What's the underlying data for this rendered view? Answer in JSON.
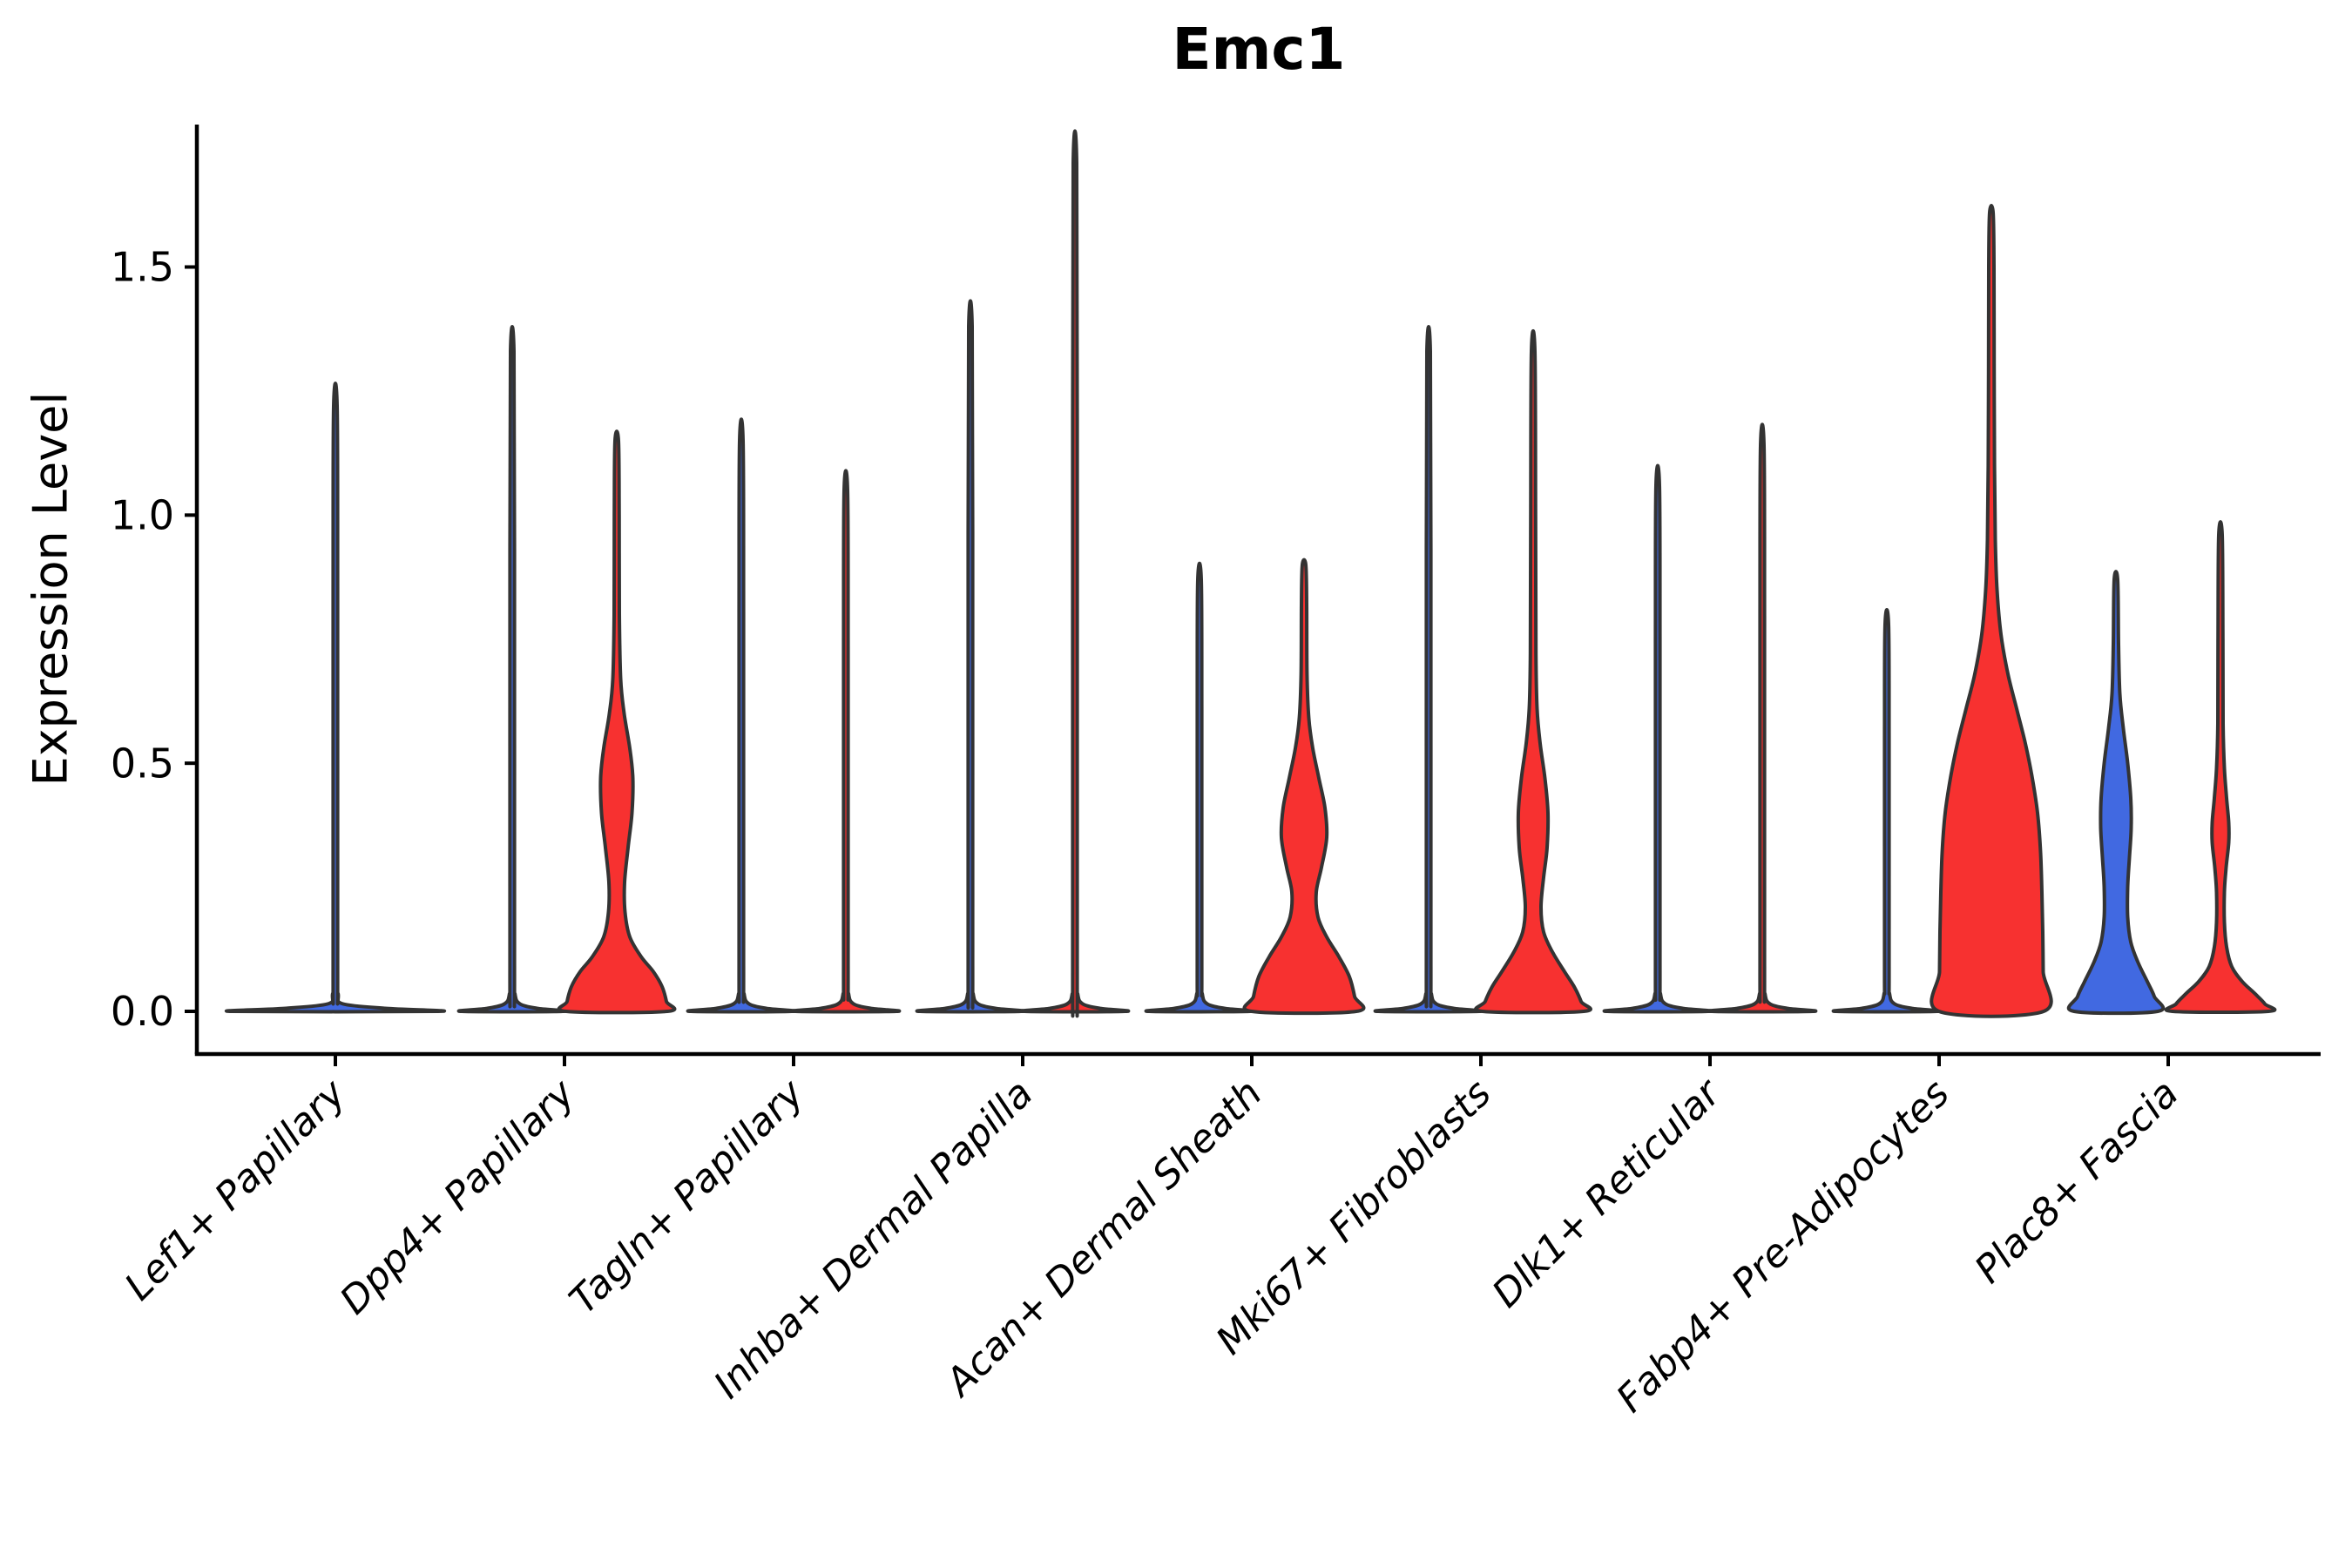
{
  "title": "Emc1",
  "ylabel": "Expression Level",
  "colors": {
    "red": "#f73130",
    "blue": "#4169e1",
    "outline": "#333333",
    "axis": "#000000",
    "text": "#000000"
  },
  "chart_data": {
    "type": "violin",
    "title": "Emc1",
    "xlabel": "",
    "ylabel": "Expression Level",
    "ylim": [
      -0.086,
      1.787
    ],
    "yticks": [
      0,
      0.5,
      1.0,
      1.5
    ],
    "ytick_labels": [
      "0.0",
      "0.5",
      "1.0",
      "1.5"
    ],
    "grid": false,
    "legend": "none",
    "categories": [
      "Lef1+ Papillary",
      "Dpp4+ Papillary",
      "Tagln+ Papillary",
      "Inhba+ Dermal Papilla",
      "Acan+ Dermal Sheath",
      "Mki67+ Fibroblasts",
      "Dlk1+ Reticular",
      "Fabp4+ Pre-Adipocytes",
      "Plac8+ Fascia"
    ],
    "note": "Split violin plot; each category has a left (blue) and right (red) group violin; most collapse to a flat base at 0 with a thin density spike. Lef1+ Papillary has a single centered full-width violin. profile = [expression_value, half_width_px] pairs.",
    "violins": [
      {
        "category_index": 0,
        "category": "Lef1+ Papillary",
        "side": "center",
        "fill": "blue",
        "max": 1.22,
        "shape": "spike",
        "base": 118
      },
      {
        "category_index": 1,
        "category": "Dpp4+ Papillary",
        "side": "left",
        "fill": "blue",
        "max": 1.33,
        "shape": "spike",
        "base": 58
      },
      {
        "category_index": 1,
        "category": "Dpp4+ Papillary",
        "side": "right",
        "fill": "red",
        "max": 1.15,
        "shape": "bulged",
        "profile": [
          [
            0,
            58
          ],
          [
            0.02,
            57
          ],
          [
            0.05,
            52
          ],
          [
            0.08,
            42
          ],
          [
            0.11,
            28
          ],
          [
            0.15,
            15
          ],
          [
            0.2,
            9.5
          ],
          [
            0.26,
            9
          ],
          [
            0.33,
            13
          ],
          [
            0.4,
            17.5
          ],
          [
            0.47,
            18.5
          ],
          [
            0.53,
            15
          ],
          [
            0.6,
            8.5
          ],
          [
            0.67,
            4.5
          ],
          [
            0.8,
            3
          ],
          [
            1.0,
            2.8
          ],
          [
            1.15,
            2
          ]
        ]
      },
      {
        "category_index": 2,
        "category": "Tagln+ Papillary",
        "side": "left",
        "fill": "blue",
        "max": 1.15,
        "shape": "spike",
        "base": 58
      },
      {
        "category_index": 2,
        "category": "Tagln+ Papillary",
        "side": "right",
        "fill": "red",
        "max": 1.05,
        "shape": "spike",
        "base": 58
      },
      {
        "category_index": 3,
        "category": "Inhba+ Dermal Papilla",
        "side": "left",
        "fill": "blue",
        "max": 1.38,
        "shape": "spike",
        "base": 58
      },
      {
        "category_index": 3,
        "category": "Inhba+ Dermal Papilla",
        "side": "right",
        "fill": "red",
        "max": 1.71,
        "shape": "spike",
        "base": 58
      },
      {
        "category_index": 4,
        "category": "Acan+ Dermal Sheath",
        "side": "left",
        "fill": "blue",
        "max": 0.87,
        "shape": "spike",
        "base": 58
      },
      {
        "category_index": 4,
        "category": "Acan+ Dermal Sheath",
        "side": "right",
        "fill": "red",
        "max": 0.9,
        "shape": "bulged",
        "profile": [
          [
            0,
            60
          ],
          [
            0.03,
            58
          ],
          [
            0.07,
            52
          ],
          [
            0.11,
            40
          ],
          [
            0.15,
            26
          ],
          [
            0.19,
            16
          ],
          [
            0.24,
            14
          ],
          [
            0.29,
            20
          ],
          [
            0.35,
            26
          ],
          [
            0.41,
            24
          ],
          [
            0.47,
            17
          ],
          [
            0.53,
            10
          ],
          [
            0.59,
            5.5
          ],
          [
            0.68,
            3.4
          ],
          [
            0.82,
            3
          ],
          [
            0.9,
            2
          ]
        ]
      },
      {
        "category_index": 5,
        "category": "Mki67+ Fibroblasts",
        "side": "left",
        "fill": "blue",
        "max": 1.33,
        "shape": "spike",
        "base": 58
      },
      {
        "category_index": 5,
        "category": "Mki67+ Fibroblasts",
        "side": "right",
        "fill": "red",
        "max": 1.33,
        "shape": "bulged",
        "profile": [
          [
            0,
            58
          ],
          [
            0.02,
            55
          ],
          [
            0.05,
            47
          ],
          [
            0.08,
            36
          ],
          [
            0.12,
            22
          ],
          [
            0.16,
            12
          ],
          [
            0.21,
            9
          ],
          [
            0.27,
            12
          ],
          [
            0.33,
            16
          ],
          [
            0.4,
            17
          ],
          [
            0.47,
            13.5
          ],
          [
            0.54,
            8
          ],
          [
            0.61,
            4.5
          ],
          [
            0.72,
            3.2
          ],
          [
            1.0,
            2.8
          ],
          [
            1.33,
            2
          ]
        ]
      },
      {
        "category_index": 6,
        "category": "Dlk1+ Reticular",
        "side": "left",
        "fill": "blue",
        "max": 1.06,
        "shape": "spike",
        "base": 58
      },
      {
        "category_index": 6,
        "category": "Dlk1+ Reticular",
        "side": "right",
        "fill": "red",
        "max": 1.14,
        "shape": "spike",
        "base": 58
      },
      {
        "category_index": 7,
        "category": "Fabp4+ Pre-Adipocytes",
        "side": "left",
        "fill": "blue",
        "max": 0.78,
        "shape": "spike",
        "base": 58
      },
      {
        "category_index": 7,
        "category": "Fabp4+ Pre-Adipocytes",
        "side": "right",
        "fill": "red",
        "max": 1.61,
        "shape": "bulged",
        "profile": [
          [
            0,
            60
          ],
          [
            0.08,
            59.5
          ],
          [
            0.16,
            59
          ],
          [
            0.24,
            58
          ],
          [
            0.32,
            56.5
          ],
          [
            0.4,
            53
          ],
          [
            0.47,
            47
          ],
          [
            0.54,
            39
          ],
          [
            0.61,
            29
          ],
          [
            0.68,
            19
          ],
          [
            0.76,
            11
          ],
          [
            0.85,
            6.5
          ],
          [
            0.95,
            4.5
          ],
          [
            1.1,
            3.6
          ],
          [
            1.3,
            3.2
          ],
          [
            1.5,
            3
          ],
          [
            1.61,
            2
          ]
        ]
      },
      {
        "category_index": 8,
        "category": "Plac8+ Fascia",
        "side": "left",
        "fill": "blue",
        "max": 0.87,
        "shape": "bulged",
        "profile": [
          [
            0,
            48
          ],
          [
            0.03,
            44
          ],
          [
            0.06,
            36
          ],
          [
            0.1,
            25
          ],
          [
            0.14,
            17
          ],
          [
            0.19,
            13.5
          ],
          [
            0.25,
            13.5
          ],
          [
            0.31,
            15.5
          ],
          [
            0.37,
            17.5
          ],
          [
            0.43,
            17
          ],
          [
            0.5,
            13.5
          ],
          [
            0.57,
            8.5
          ],
          [
            0.64,
            4.5
          ],
          [
            0.74,
            3
          ],
          [
            0.87,
            2
          ]
        ]
      },
      {
        "category_index": 8,
        "category": "Plac8+ Fascia",
        "side": "right",
        "fill": "red",
        "max": 0.96,
        "shape": "bulged",
        "profile": [
          [
            0,
            55
          ],
          [
            0.015,
            51
          ],
          [
            0.035,
            40
          ],
          [
            0.06,
            25
          ],
          [
            0.09,
            13
          ],
          [
            0.13,
            7
          ],
          [
            0.18,
            4.5
          ],
          [
            0.24,
            4.5
          ],
          [
            0.29,
            6.5
          ],
          [
            0.34,
            9.5
          ],
          [
            0.38,
            9.5
          ],
          [
            0.43,
            7
          ],
          [
            0.49,
            4.5
          ],
          [
            0.58,
            3
          ],
          [
            0.75,
            2.8
          ],
          [
            0.96,
            2
          ]
        ]
      }
    ]
  }
}
